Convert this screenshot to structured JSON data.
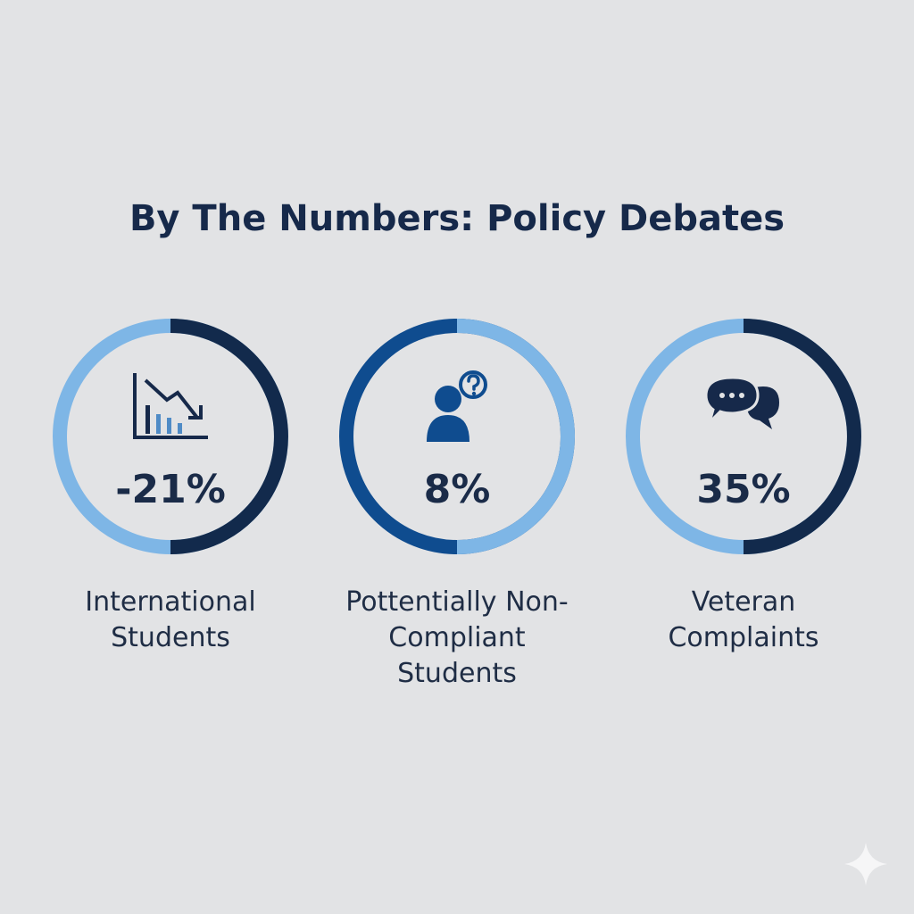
{
  "title": "By The Numbers: Policy Debates",
  "colors": {
    "background": "#e2e3e5",
    "title": "#16294a",
    "light_blue": "#7eb6e6",
    "navy": "#122a4c",
    "medium_blue": "#0f4c8f"
  },
  "stats": [
    {
      "value": "-21%",
      "label_lines": [
        "International",
        "Students"
      ],
      "icon": "declining-bar-chart-icon",
      "ring": "light-blue-with-navy-half"
    },
    {
      "value": "8%",
      "label_lines": [
        "Pottentially Non-",
        "Compliant",
        "Students"
      ],
      "icon": "person-question-icon",
      "ring": "medium-blue-with-light-blue-quarter"
    },
    {
      "value": "35%",
      "label_lines": [
        "Veteran",
        "Complaints"
      ],
      "icon": "speech-bubbles-icon",
      "ring": "light-blue-with-navy-half"
    }
  ],
  "watermark_icon": "sparkle-icon"
}
